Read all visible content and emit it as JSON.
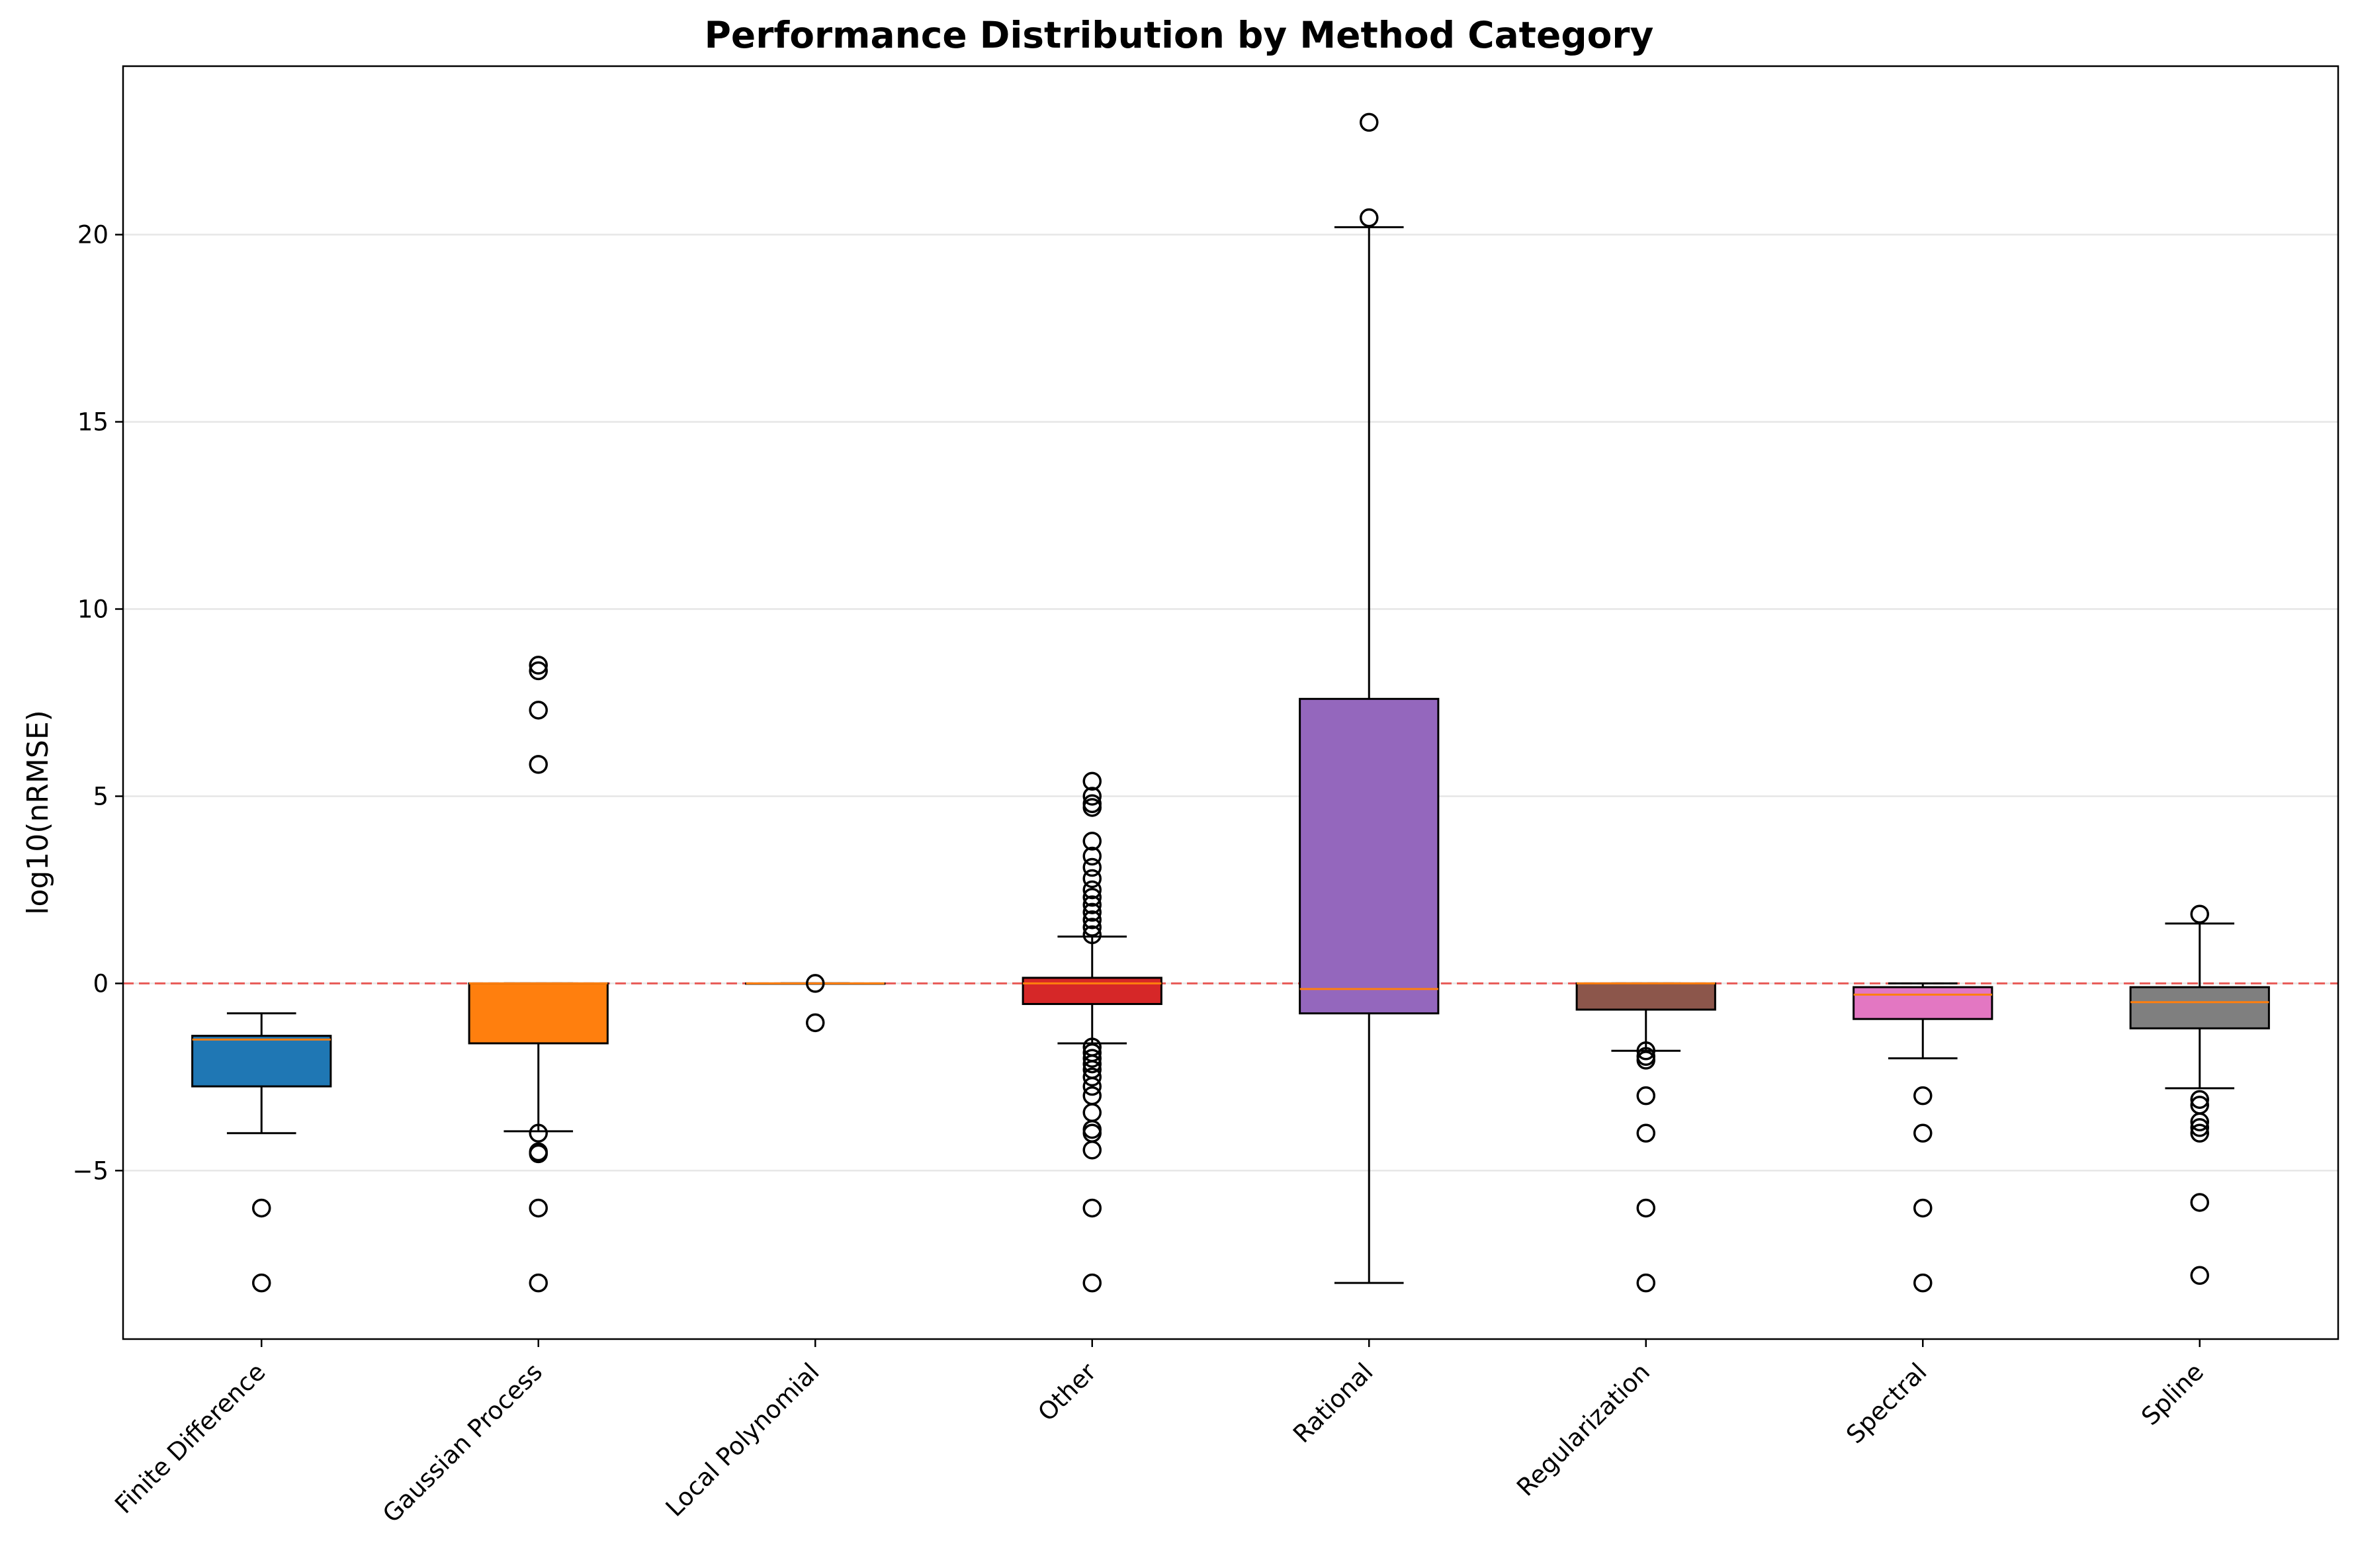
{
  "chart_data": {
    "type": "box",
    "title": "Performance Distribution by Method Category",
    "xlabel": "",
    "ylabel": "log10(nRMSE)",
    "ylim": [
      -9.5,
      24.5
    ],
    "yticks": [
      -5,
      0,
      5,
      10,
      15,
      20
    ],
    "grid": "horizontal",
    "reference_line": {
      "y": 0,
      "color": "#e8413c",
      "style": "dashed"
    },
    "categories": [
      "Finite Difference",
      "Gaussian Process",
      "Local Polynomial",
      "Other",
      "Rational",
      "Regularization",
      "Spectral",
      "Spline"
    ],
    "boxes": [
      {
        "name": "Finite Difference",
        "color": "#1f77b4",
        "whisker_low": -4.0,
        "q1": -2.75,
        "median": -1.5,
        "q3": -1.4,
        "whisker_high": -0.8,
        "outliers": [
          -6.0,
          -8.0
        ]
      },
      {
        "name": "Gaussian Process",
        "color": "#ff7f0e",
        "whisker_low": -3.95,
        "q1": -1.6,
        "median": 0.0,
        "q3": 0.0,
        "whisker_high": 0.0,
        "outliers": [
          8.5,
          8.35,
          7.3,
          5.85,
          -4.0,
          -4.5,
          -4.55,
          -6.0,
          -8.0
        ]
      },
      {
        "name": "Local Polynomial",
        "color": "#2ca02c",
        "whisker_low": 0.0,
        "q1": 0.0,
        "median": 0.0,
        "q3": 0.0,
        "whisker_high": 0.0,
        "outliers": [
          0.0,
          -1.05
        ]
      },
      {
        "name": "Other",
        "color": "#d62728",
        "whisker_low": -1.6,
        "q1": -0.55,
        "median": 0.0,
        "q3": 0.15,
        "whisker_high": 1.25,
        "outliers": [
          5.4,
          5.0,
          4.8,
          4.7,
          3.8,
          3.4,
          3.1,
          2.8,
          2.5,
          2.3,
          2.1,
          1.9,
          1.7,
          1.5,
          1.3,
          -1.7,
          -1.85,
          -2.0,
          -2.15,
          -2.3,
          -2.5,
          -2.75,
          -3.0,
          -3.45,
          -3.9,
          -4.0,
          -4.45,
          -6.0,
          -8.0
        ]
      },
      {
        "name": "Rational",
        "color": "#9467bd",
        "whisker_low": -8.0,
        "q1": -0.8,
        "median": -0.15,
        "q3": 7.6,
        "whisker_high": 20.2,
        "outliers": [
          23.0,
          20.45
        ]
      },
      {
        "name": "Regularization",
        "color": "#8c564b",
        "whisker_low": -1.8,
        "q1": -0.7,
        "median": 0.0,
        "q3": 0.0,
        "whisker_high": 0.0,
        "outliers": [
          -1.8,
          -1.95,
          -2.05,
          -3.0,
          -4.0,
          -6.0,
          -8.0
        ]
      },
      {
        "name": "Spectral",
        "color": "#e377c2",
        "whisker_low": -2.0,
        "q1": -0.95,
        "median": -0.3,
        "q3": -0.1,
        "whisker_high": 0.0,
        "outliers": [
          -3.0,
          -4.0,
          -6.0,
          -8.0
        ]
      },
      {
        "name": "Spline",
        "color": "#7f7f7f",
        "whisker_low": -2.8,
        "q1": -1.2,
        "median": -0.5,
        "q3": -0.1,
        "whisker_high": 1.6,
        "outliers": [
          1.85,
          -3.1,
          -3.25,
          -3.7,
          -3.85,
          -4.0,
          -5.85,
          -7.8
        ]
      }
    ]
  }
}
